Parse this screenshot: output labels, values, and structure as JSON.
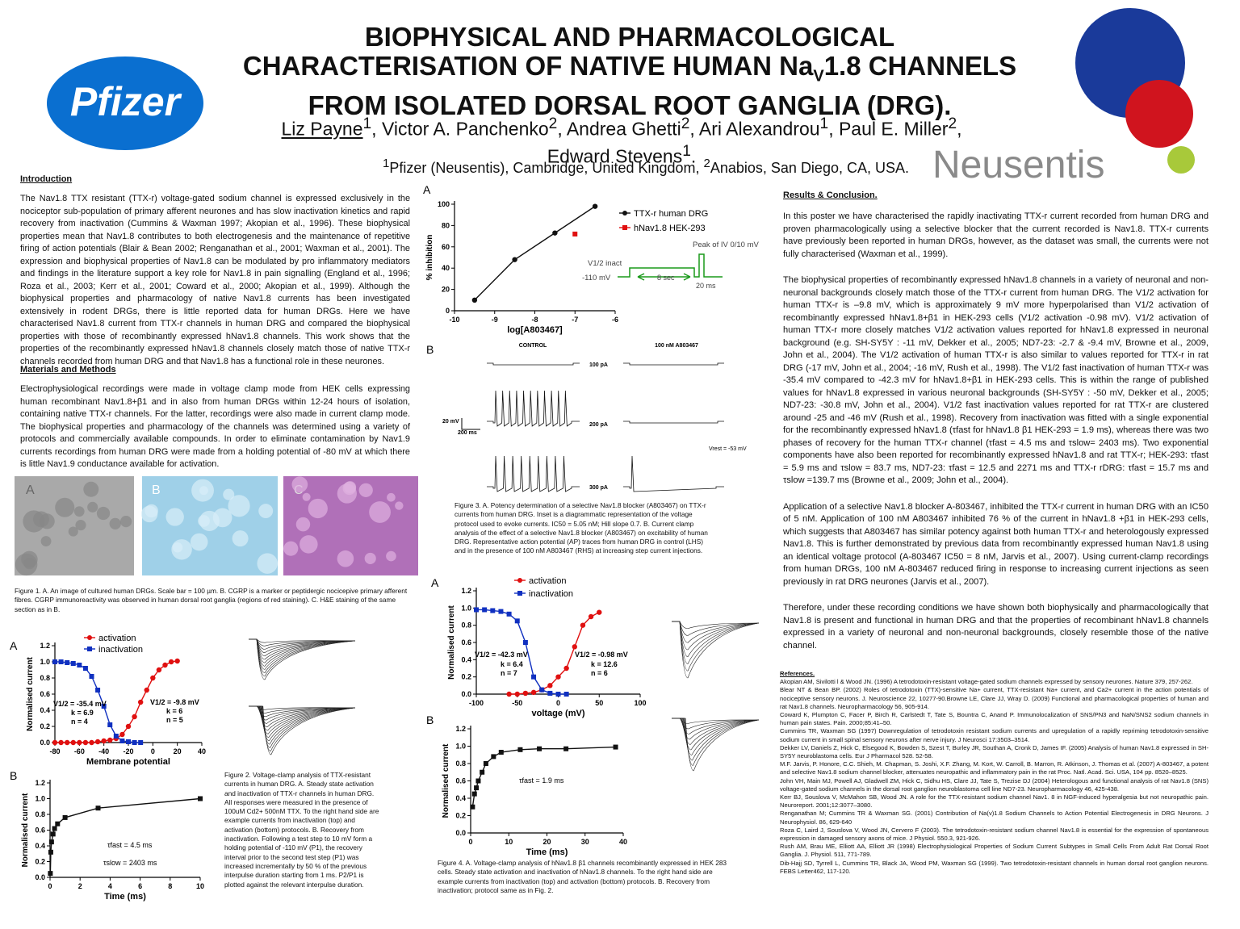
{
  "header": {
    "title": {
      "line1": "BIOPHYSICAL AND PHARMACOLOGICAL",
      "line2": [
        "CHARACTERISATION OF NATIVE HUMAN Na",
        "V",
        "1.8 CHANNELS"
      ],
      "line3": "FROM ISOLATED DORSAL ROOT GANGLIA (DRG)."
    },
    "authors": [
      [
        "Liz Payne",
        "1"
      ],
      [
        ", Victor A. Panchenko",
        "2"
      ],
      [
        ", Andrea Ghetti",
        "2"
      ],
      [
        ", Ari Alexandrou",
        "1"
      ],
      [
        ", Paul E. Miller",
        "2"
      ],
      [
        ",",
        ""
      ],
      [
        "Edward Stevens",
        "1"
      ],
      [
        ".",
        ""
      ]
    ],
    "affiliation": [
      "1",
      "Pfizer (Neusentis), Cambridge, United Kingdom, ",
      "2",
      "Anabios, San Diego, CA, USA."
    ]
  },
  "logos": {
    "pfizer": "Pfizer",
    "neusentis": "Neusentis"
  },
  "introduction": {
    "heading": "Introduction",
    "text": "The Nav1.8 TTX resistant (TTX-r) voltage-gated sodium channel is expressed exclusively in the nociceptor sub-population of primary afferent neurones and has slow inactivation kinetics and rapid recovery from inactivation (Cummins & Waxman 1997; Akopian et al., 1996). These biophysical properties mean that Nav1.8 contributes to both electrogenesis and the maintenance of repetitive firing of action potentials (Blair & Bean 2002; Renganathan et al., 2001; Waxman et al., 2001). The expression and biophysical properties of Nav1.8 can be modulated by pro inflammatory mediators and findings in the literature support a key role for Nav1.8 in pain signalling (England et al., 1996; Roza et al., 2003; Kerr et al., 2001; Coward et al., 2000; Akopian et al., 1999). Although the biophysical properties and pharmacology of native Nav1.8 currents has been investigated extensively in rodent DRGs, there is little reported data for human DRGs. Here we have characterised Nav1.8 current from TTX-r channels in human DRG and compared the biophysical properties with those of recombinantly expressed hNav1.8 channels. This work shows that the properties of the recombinantly expressed hNav1.8 channels closely match those of native TTX-r channels recorded from human DRG and that Nav1.8 has a functional role in these neurones."
  },
  "methods": {
    "heading": "Materials and Methods",
    "text": "Electrophysiological recordings were made in voltage clamp mode from HEK cells expressing human recombinant Nav1.8+β1 and in also from human DRGs within 12-24 hours of isolation, containing native TTX-r channels. For the latter, recordings were also made in current clamp mode. The biophysical properties and pharmacology of the channels was determined using a variety of protocols and commercially available compounds. In order to eliminate contamination by Nav1.9 currents recordings from human DRG were made from a holding potential of -80 mV at which there is little Nav1.9 conductance available for activation."
  },
  "figure1": {
    "panels": [
      "A",
      "B",
      "C"
    ],
    "caption": "Figure 1. A. An image of cultured human DRGs. Scale bar = 100 µm. B. CGRP is a marker or peptidergic nocicepive primary afferent fibres. CGRP immunoreactivity was observed in human dorsal root ganglia (regions of red staining). C. H&E staining of the same section as in B."
  },
  "figure2": {
    "caption": "Figure 2. Voltage-clamp analysis of TTX-resistant currents in human DRG. A. Steady state activation and inactivation of TTX-r channels in human DRG. All responses were measured in the presence of 100uM Cd2+ 500nM TTX. To the right hand side are example currents from inactivation (top) and activation (bottom) protocols. B. Recovery from inactivation. Following a test step to 10 mV form a holding potential of -110 mV (P1), the recovery interval prior to the second test step (P1) was increased incrementally by 50 % of the previous interpulse duration starting from 1 ms. P2/P1 is plotted against the relevant interpulse duration."
  },
  "figure3": {
    "caption": "Figure 3. A. Potency determination of a selective Nav1.8 blocker (A803467) on TTX-r currents from human DRG. Inset is a diagrammatic representation of the voltage protocol used to evoke currents. IC50 = 5.05 nM; Hill slope 0.7. B. Current clamp analysis of the effect of a selective Nav1.8 blocker (A803467) on excitability of human DRG. Representative action potential (AP) traces from human DRG in control (LHS) and in the presence of 100 nM A803467 (RHS) at increasing step current injections.",
    "inset": {
      "inact": "V1/2 inact",
      "hold": "-110 mV",
      "duration": "8 sec",
      "peak": "Peak of IV 0/10 mV",
      "test": "20 ms"
    },
    "panel_b": {
      "label": "B",
      "control": "CONTROL",
      "drug": "100 nM A803467",
      "steps": [
        "100 pA",
        "200 pA",
        "300 pA"
      ],
      "scale_mv": "20 mV",
      "scale_ms": "200 ms",
      "vrest": "Vrest = -53 mV"
    }
  },
  "figure4": {
    "caption": "Figure 4. A. Voltage-clamp analysis of hNav1.8 β1 channels recombinantly expressed in HEK 283 cells. Steady state activation and inactivation of hNav1.8 channels. To the right hand side are example currents from inactivation (top) and activation (bottom) protocols. B. Recovery from inactivation; protocol same as in Fig. 2."
  },
  "chart_data": [
    {
      "type": "scatter",
      "panel": "A",
      "xlabel": "Membrane potential",
      "ylabel": "Normalised current",
      "xlim": [
        -80,
        40
      ],
      "xticks": [
        -80,
        -60,
        -40,
        -20,
        0,
        20,
        40
      ],
      "ylim": [
        0,
        1.2
      ],
      "yticks": [
        {
          "value": 0,
          "label": "0.0"
        },
        0.2,
        0.4,
        0.6,
        0.8,
        {
          "value": 1,
          "label": "1.0"
        },
        1.2
      ],
      "series": [
        {
          "name": "activation",
          "color": "#e01010",
          "marker": "circle",
          "line": true,
          "x": [
            -80,
            -75,
            -70,
            -65,
            -60,
            -55,
            -50,
            -45,
            -40,
            -35,
            -30,
            -25,
            -20,
            -15,
            -10,
            -5,
            0,
            5,
            10,
            15,
            20
          ],
          "values": [
            0,
            0,
            0,
            0,
            0,
            0,
            0,
            0.01,
            0.02,
            0.03,
            0.05,
            0.1,
            0.2,
            0.32,
            0.5,
            0.65,
            0.8,
            0.9,
            0.96,
            1.0,
            1.01
          ]
        },
        {
          "name": "inactivation",
          "color": "#1030c0",
          "marker": "square",
          "line": true,
          "x": [
            -80,
            -75,
            -70,
            -65,
            -60,
            -55,
            -50,
            -45,
            -40,
            -35,
            -30,
            -25,
            -20,
            -15,
            -10
          ],
          "values": [
            1,
            1,
            0.99,
            0.98,
            0.96,
            0.92,
            0.82,
            0.65,
            0.45,
            0.22,
            0.08,
            0.02,
            0.01,
            0,
            0
          ]
        }
      ],
      "annotations": [
        "V1/2 = -35.4 mV",
        "k = 6.9",
        "n = 4",
        "V1/2 = -9.8 mV",
        "k = 6",
        "n = 5"
      ]
    },
    {
      "type": "scatter",
      "panel": "B",
      "xlabel": "Time (ms)",
      "ylabel": "Normalised current",
      "xlim": [
        0,
        10
      ],
      "xticks": [
        0,
        2,
        4,
        6,
        8,
        10
      ],
      "ylim": [
        0,
        1.2
      ],
      "yticks": [
        {
          "value": 0,
          "label": "0.0"
        },
        0.2,
        0.4,
        0.6,
        0.8,
        {
          "value": 1,
          "label": "1.0"
        },
        1.2
      ],
      "series": [
        {
          "name": "recovery",
          "color": "#111111",
          "marker": "square",
          "line": true,
          "x": [
            0.02,
            0.05,
            0.1,
            0.2,
            0.3,
            0.5,
            1,
            3.2,
            10
          ],
          "values": [
            0.05,
            0.32,
            0.45,
            0.55,
            0.62,
            0.68,
            0.76,
            0.88,
            1.0
          ]
        }
      ],
      "annotations": [
        "τfast = 4.5 ms",
        "τslow = 2403 ms"
      ]
    },
    {
      "type": "scatter",
      "panel": "A",
      "xlabel": "log[A803467]",
      "ylabel": "% inhibition",
      "xlim": [
        -10,
        -6
      ],
      "xticks": [
        -10,
        -9,
        -8,
        -7,
        -6
      ],
      "ylim": [
        0,
        100
      ],
      "yticks": [
        0,
        20,
        40,
        60,
        80,
        100
      ],
      "series": [
        {
          "name": "TTX-r human DRG",
          "color": "#111111",
          "marker": "circle",
          "line": true,
          "x": [
            -9.5,
            -8.5,
            -7.5,
            -6.5
          ],
          "values": [
            10,
            48,
            73,
            98
          ]
        },
        {
          "name": "hNav1.8 HEK-293",
          "color": "#e01010",
          "marker": "square",
          "line": false,
          "x": [
            -7
          ],
          "values": [
            72
          ]
        }
      ],
      "annotations": []
    },
    {
      "type": "scatter",
      "panel": "A",
      "xlabel": "voltage (mV)",
      "ylabel": "Normalised current",
      "xlim": [
        -100,
        100
      ],
      "xticks": [
        -100,
        -50,
        0,
        50,
        100
      ],
      "ylim": [
        0,
        1.2
      ],
      "yticks": [
        {
          "value": 0,
          "label": "0.0"
        },
        0.2,
        0.4,
        0.6,
        0.8,
        {
          "value": 1,
          "label": "1.0"
        },
        1.2
      ],
      "series": [
        {
          "name": "activation",
          "color": "#e01010",
          "marker": "circle",
          "line": true,
          "x": [
            -60,
            -50,
            -40,
            -30,
            -20,
            -10,
            0,
            10,
            20,
            30,
            40,
            50
          ],
          "values": [
            0,
            0,
            0.01,
            0.02,
            0.05,
            0.1,
            0.2,
            0.3,
            0.55,
            0.8,
            0.9,
            0.95
          ]
        },
        {
          "name": "inactivation",
          "color": "#1030c0",
          "marker": "square",
          "line": true,
          "x": [
            -100,
            -90,
            -80,
            -70,
            -60,
            -50,
            -40,
            -30,
            -20,
            -10,
            0,
            10
          ],
          "values": [
            0.98,
            0.98,
            0.97,
            0.96,
            0.93,
            0.85,
            0.6,
            0.2,
            0.05,
            0.01,
            0,
            0
          ]
        }
      ],
      "annotations": [
        "V1/2 = -42.3 mV",
        "k = 6.4",
        "n = 7",
        "V1/2 = -0.98 mV",
        "k = 12.6",
        "n = 6"
      ]
    },
    {
      "type": "scatter",
      "panel": "B",
      "xlabel": "Time (ms)",
      "ylabel": "Normalised current",
      "xlim": [
        0,
        40
      ],
      "xticks": [
        0,
        10,
        20,
        30,
        40
      ],
      "ylim": [
        0,
        1.2
      ],
      "yticks": [
        {
          "value": 0,
          "label": "0.0"
        },
        0.2,
        0.4,
        0.6,
        0.8,
        {
          "value": 1,
          "label": "1.0"
        },
        1.2
      ],
      "series": [
        {
          "name": "recovery",
          "color": "#111111",
          "marker": "square",
          "line": true,
          "x": [
            0.5,
            1,
            1.5,
            2,
            3,
            4,
            6,
            8,
            13,
            18,
            25,
            38
          ],
          "values": [
            0.3,
            0.45,
            0.52,
            0.6,
            0.7,
            0.8,
            0.88,
            0.93,
            0.96,
            0.97,
            0.97,
            0.99
          ]
        }
      ],
      "annotations": [
        "τfast = 1.9 ms"
      ]
    }
  ],
  "results": {
    "heading": "Results & Conclusion.",
    "paragraphs": [
      "In this poster we have characterised the rapidly inactivating TTX-r current recorded from human DRG and proven pharmacologically using a selective blocker that the current recorded is Nav1.8. TTX-r currents have previously been reported in human DRGs, however, as the dataset was small, the currents were not fully characterised (Waxman et al., 1999).",
      "The biophysical properties of recombinantly expressed hNav1.8 channels in a variety of neuronal and non-neuronal backgrounds closely match those of the TTX-r current from human DRG. The V1/2 activation for human TTX-r is –9.8 mV, which is approximately 9 mV more hyperpolarised than V1/2 activation of recombinantly expressed hNav1.8+β1 in HEK-293 cells (V1/2 activation -0.98 mV). V1/2 activation of human TTX-r more closely matches V1/2 activation values reported for hNav1.8 expressed in neuronal background (e.g. SH-SY5Y : -11 mV, Dekker et al., 2005; ND7-23: -2.7 & -9.4 mV, Browne et al., 2009, John et al., 2004). The V1/2 activation of human TTX-r is also similar to values reported for TTX-r in rat DRG (-17 mV, John et al., 2004; -16 mV, Rush et al., 1998). The V1/2 fast inactivation of human TTX-r was -35.4 mV compared to -42.3 mV for hNav1.8+β1 in HEK-293 cells. This is within the range of published values for hNav1.8 expressed in various neuronal backgrounds (SH-SY5Y : -50 mV, Dekker et al., 2005; ND7-23: -30.8 mV, John et al., 2004). V1/2 fast inactivation values reported for rat TTX-r are clustered around -25 and -46 mV (Rush et al., 1998). Recovery from inactivation was fitted with a single exponential for the recombinantly expressed hNav1.8 (τfast for hNav1.8 β1 HEK-293 = 1.9 ms), whereas there was two phases of recovery for the human TTX-r channel (τfast = 4.5 ms and τslow= 2403 ms). Two exponential components have also been reported for recombinantly expressed hNav1.8 and rat TTX-r; HEK-293: τfast = 5.9 ms and τslow = 83.7 ms, ND7-23: τfast = 12.5 and 2271 ms and TTX-r rDRG: τfast = 15.7 ms and τslow =139.7 ms (Browne et al., 2009; John et al., 2004).",
      "Application of a selective Nav1.8 blocker A-803467, inhibited the TTX-r current in human DRG with an IC50 of 5 nM. Application of 100 nM A803467 inhibited 76 % of the current in hNav1.8 +β1 in HEK-293 cells, which suggests that A803467 has similar potency against both human TTX-r and heterologously expressed Nav1.8. This is further demonstrated by previous data from recombinantly expressed human Nav1.8 using an identical voltage protocol (A-803467 IC50 = 8 nM, Jarvis et al., 2007). Using current-clamp recordings from human DRGs, 100 nM A-803467 reduced firing in response to increasing current injections as seen previously in rat DRG neurones (Jarvis et al., 2007).",
      "Therefore, under these recording conditions we have shown both biophysically and pharmacologically that Nav1.8 is present and functional in human DRG and that the properties of recombinant hNav1.8 channels expressed in a variety of neuronal and non-neuronal backgrounds, closely resemble those of the native channel."
    ]
  },
  "references": {
    "heading": "References.",
    "items": [
      "Akopian AM, Sivilotti l & Wood JN. (1996) A tetrodotoxin-resistant voltage-gated sodium channels expressed by sensory neurones. Nature 379, 257-262.",
      "Blear NT & Bean BP. (2002) Roles of tetrodotoxin (TTX)-sensitive Na+ current, TTX-resistant Na+ current, and Ca2+ current in the action potentials of nociceptive sensory neurons. J. Neuroscience 22, 10277-90.Browne LE, Clare JJ, Wray D. (2009) Functional and pharmacological properties of human and rat Nav1.8 channels. Neuropharmacology 56, 905-914.",
      "Coward K, Plumpton C, Facer P, Birch R, Carlstedt T, Tate S, Bountra C, Anand P. Immunolocalization of SNS/PN3 and NaN/SNS2 sodium channels in human pain states. Pain. 2000;85:41–50.",
      "Cummins TR, Waxman SG (1997) Downregulation of tetrodotoxin resistant sodium currents and upregulation of a rapidly repriming tetrodotoxin-sensitive sodium current in small spinal sensory neurons after nerve injury. J Neurosci 17:3503–3514.",
      "Dekker LV, Daniels Z, Hick C, Elsegood K, Bowden S, Szest T, Burley JR, Southan A, Cronk D, James IF. (2005) Analysis of human Nav1.8 expressed in SH-SY5Y neuroblastoma cells. Eur J Pharmacol 528. 52-58.",
      "M.F. Jarvis, P. Honore, C.C. Shieh, M. Chapman, S. Joshi, X.F. Zhang, M. Kort, W. Carroll, B. Marron, R. Atkinson, J. Thomas et al. (2007) A-803467, a potent and selective Nav1.8 sodium channel blocker, attenuates neuropathic and inflammatory pain in the rat Proc. Natl. Acad. Sci. USA, 104 pp. 8520–8525.",
      "John VH, Main MJ, Powell AJ, Gladwell ZM, Hick C, Sidhu HS, Clare JJ, Tate S, Trezise DJ (2004) Heterologous and functional analysis of rat Nav1.8 (SNS) voltage-gated sodium channels in the dorsal root ganglion neuroblastoma cell line ND7-23. Neuropharmacology 46, 425-438.",
      "Kerr BJ, Souslova V, McMahon SB, Wood JN. A role for the TTX-resistant sodium channel Nav1. 8 in NGF-induced hyperalgesia but not neuropathic pain. Neuroreport. 2001;12:3077–3080.",
      "Renganathan M; Cummins TR & Waxman SG. (2001) Contribution of Na(v)1.8 Sodium Channels to Action Potential Electrogenesis in DRG Neurons. J Neurophysiol. 86, 629-640",
      "Roza C, Laird J, Souslova V, Wood JN, Cervero F (2003). The tetrodotoxin-resistant sodium channel Nav1.8 is essential for the expression of spontaneous expression in damaged sensory axons of mice. J Physiol. 550.3, 921-926.",
      "Rush AM, Brau ME, Elliott AA, Elliott JR (1998) Electrophysiological Properties of Sodium Current Subtypes in Small Cells From Adult Rat Dorsal Root Ganglia. J. Physiol. 511, 771-789.",
      "Dib-Hajj SD, Tyrrell L, Cummins TR, Black JA, Wood PM, Waxman SG (1999). Two tetrodotoxin-resistant channels in human dorsal root ganglion neurons. FEBS Letter462, 117-120."
    ]
  }
}
